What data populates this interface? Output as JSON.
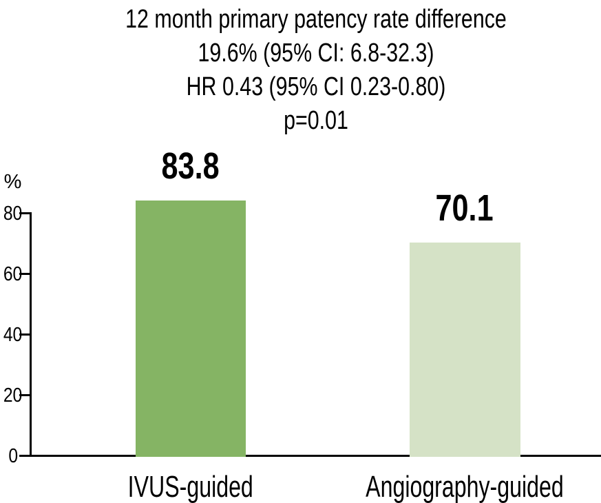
{
  "title": {
    "lines": [
      "12 month primary patency rate difference",
      "19.6% (95% CI: 6.8-32.3)",
      "HR 0.43 (95% CI 0.23-0.80)",
      "p=0.01"
    ]
  },
  "chart_data": {
    "type": "bar",
    "title": "12 month primary patency rate difference",
    "annotation_lines": [
      "19.6% (95% CI: 6.8-32.3)",
      "HR 0.43 (95% CI 0.23-0.80)",
      "p=0.01"
    ],
    "categories": [
      "IVUS-guided",
      "Angiography-guided"
    ],
    "values": [
      83.8,
      70.1
    ],
    "value_labels": [
      "83.8",
      "70.1"
    ],
    "xlabel": "",
    "ylabel": "%",
    "ylim": [
      0,
      88
    ],
    "yticks": [
      0,
      20,
      40,
      60,
      80
    ],
    "grid": false,
    "legend": false,
    "bar_colors": [
      "#85b464",
      "#d5e2c6"
    ]
  },
  "colors": {
    "bar_ivus_guided": "#85b464",
    "bar_angiography_guided": "#d5e2c6",
    "axis": "#000000",
    "text": "#000000",
    "background": "#ffffff"
  }
}
